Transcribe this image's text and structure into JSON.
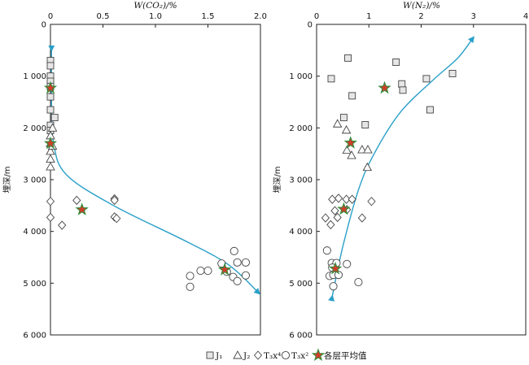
{
  "chart_data": [
    {
      "type": "scatter",
      "xlabel": "W(CO₂)/%",
      "ylabel": "埋深/m",
      "xlim": [
        0,
        2.0
      ],
      "ylim": [
        0,
        6000
      ],
      "y_inverted": true,
      "x_axis_position": "top",
      "xticks": [
        "0",
        "0.5",
        "1.0",
        "1.5",
        "2.0"
      ],
      "yticks": [
        "0",
        "1 000",
        "2 000",
        "3 000",
        "4 000",
        "5 000",
        "6 000"
      ],
      "trend_color": "#2aa0c8",
      "series": [
        {
          "name": "J₁",
          "marker": "square",
          "points": [
            [
              0.0,
              700
            ],
            [
              0.0,
              800
            ],
            [
              0.0,
              1000
            ],
            [
              0.0,
              1100
            ],
            [
              0.0,
              1200
            ],
            [
              0.0,
              1400
            ],
            [
              0.0,
              1650
            ],
            [
              0.04,
              1800
            ],
            [
              0.0,
              1950
            ],
            [
              0.0,
              2050
            ]
          ]
        },
        {
          "name": "J₂",
          "marker": "triangle",
          "points": [
            [
              0.02,
              2000
            ],
            [
              0.0,
              2150
            ],
            [
              0.0,
              2300
            ],
            [
              0.0,
              2450
            ],
            [
              0.0,
              2600
            ],
            [
              0.0,
              2750
            ],
            [
              0.02,
              2350
            ]
          ]
        },
        {
          "name": "T₃x⁴",
          "marker": "diamond",
          "points": [
            [
              0.25,
              3400
            ],
            [
              0.0,
              3420
            ],
            [
              0.61,
              3370
            ],
            [
              0.61,
              3400
            ],
            [
              0.0,
              3730
            ],
            [
              0.61,
              3720
            ],
            [
              0.63,
              3750
            ],
            [
              0.11,
              3880
            ]
          ]
        },
        {
          "name": "T₃x²",
          "marker": "circle",
          "points": [
            [
              1.75,
              4380
            ],
            [
              1.78,
              4600
            ],
            [
              1.86,
              4600
            ],
            [
              1.63,
              4620
            ],
            [
              1.43,
              4760
            ],
            [
              1.5,
              4760
            ],
            [
              1.68,
              4780
            ],
            [
              1.33,
              4860
            ],
            [
              1.86,
              4850
            ],
            [
              1.74,
              4880
            ],
            [
              1.78,
              4960
            ],
            [
              1.33,
              5070
            ]
          ]
        },
        {
          "name": "各层平均值",
          "marker": "star",
          "points": [
            [
              0.0,
              1230
            ],
            [
              0.0,
              2300
            ],
            [
              0.3,
              3580
            ],
            [
              1.66,
              4740
            ]
          ]
        }
      ],
      "trend": [
        [
          0.01,
          500
        ],
        [
          0.01,
          1500
        ],
        [
          0.03,
          2300
        ],
        [
          0.15,
          2900
        ],
        [
          0.6,
          3500
        ],
        [
          1.3,
          4200
        ],
        [
          1.7,
          4650
        ],
        [
          1.99,
          5200
        ]
      ]
    },
    {
      "type": "scatter",
      "xlabel": "W(N₂)/%",
      "ylabel": "埋深/m",
      "xlim": [
        0,
        4
      ],
      "ylim": [
        0,
        6000
      ],
      "y_inverted": true,
      "x_axis_position": "top",
      "xticks": [
        "0",
        "1",
        "2",
        "3",
        "4"
      ],
      "yticks": [
        "0",
        "1 000",
        "2 000",
        "3 000",
        "4 000",
        "5 000",
        "6 000"
      ],
      "trend_color": "#2aa0c8",
      "series": [
        {
          "name": "J₁",
          "marker": "square",
          "points": [
            [
              0.6,
              650
            ],
            [
              1.52,
              730
            ],
            [
              2.6,
              950
            ],
            [
              0.28,
              1050
            ],
            [
              2.1,
              1050
            ],
            [
              1.63,
              1150
            ],
            [
              1.65,
              1270
            ],
            [
              0.68,
              1380
            ],
            [
              2.17,
              1650
            ],
            [
              0.52,
              1800
            ],
            [
              0.93,
              1940
            ]
          ]
        },
        {
          "name": "J₂",
          "marker": "triangle",
          "points": [
            [
              0.4,
              1920
            ],
            [
              0.57,
              2040
            ],
            [
              0.58,
              2430
            ],
            [
              0.67,
              2530
            ],
            [
              0.87,
              2420
            ],
            [
              0.98,
              2420
            ],
            [
              0.97,
              2760
            ]
          ]
        },
        {
          "name": "T₃x⁴",
          "marker": "diamond",
          "points": [
            [
              0.3,
              3380
            ],
            [
              0.42,
              3360
            ],
            [
              0.57,
              3380
            ],
            [
              0.68,
              3380
            ],
            [
              1.05,
              3420
            ],
            [
              0.35,
              3600
            ],
            [
              0.58,
              3580
            ],
            [
              0.17,
              3740
            ],
            [
              0.4,
              3730
            ],
            [
              0.87,
              3740
            ],
            [
              0.27,
              3870
            ]
          ]
        },
        {
          "name": "T₃x²",
          "marker": "circle",
          "points": [
            [
              0.2,
              4370
            ],
            [
              0.29,
              4610
            ],
            [
              0.38,
              4610
            ],
            [
              0.58,
              4630
            ],
            [
              0.3,
              4700
            ],
            [
              0.25,
              4860
            ],
            [
              0.32,
              4840
            ],
            [
              0.42,
              4840
            ],
            [
              0.8,
              4980
            ],
            [
              0.32,
              5060
            ]
          ]
        },
        {
          "name": "各层平均值",
          "marker": "star",
          "points": [
            [
              1.3,
              1230
            ],
            [
              0.65,
              2290
            ],
            [
              0.52,
              3570
            ],
            [
              0.36,
              4720
            ]
          ]
        }
      ],
      "trend": [
        [
          0.3,
          5250
        ],
        [
          0.5,
          4300
        ],
        [
          0.8,
          3200
        ],
        [
          1.1,
          2500
        ],
        [
          1.6,
          1700
        ],
        [
          2.2,
          1100
        ],
        [
          2.7,
          650
        ],
        [
          3.0,
          250
        ]
      ]
    }
  ],
  "legend": {
    "placement": "bottom",
    "entries": [
      "J₁",
      "J₂",
      "T₃x⁴",
      "T₃x²",
      "各层平均值"
    ]
  }
}
